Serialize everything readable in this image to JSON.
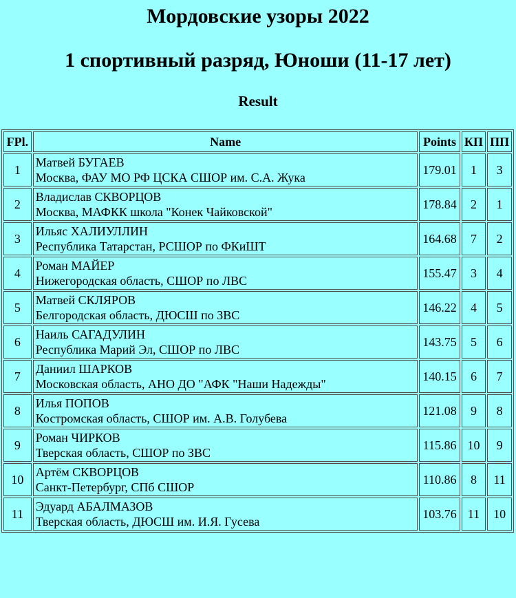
{
  "page": {
    "title": "Мордовские узоры 2022",
    "subtitle": "1 спортивный разряд, Юноши (11-17 лет)",
    "result_label": "Result"
  },
  "colors": {
    "background": "#99FFFF",
    "text": "#000000",
    "table_border": "#4D4D4D"
  },
  "table": {
    "columns": [
      "FPl.",
      "Name",
      "Points",
      "КП",
      "ПП"
    ],
    "rows": [
      {
        "rank": "1",
        "name": "Матвей БУГАЕВ",
        "affiliation": "Москва, ФАУ МО РФ ЦСКА СШОР им. С.А. Жука",
        "points": "179.01",
        "kp": "1",
        "pp": "3"
      },
      {
        "rank": "2",
        "name": "Владислав СКВОРЦОВ",
        "affiliation": "Москва, МАФКК школа \"Конек Чайковской\"",
        "points": "178.84",
        "kp": "2",
        "pp": "1"
      },
      {
        "rank": "3",
        "name": "Ильяс ХАЛИУЛЛИН",
        "affiliation": "Республика Татарстан, РСШОР по ФКиШТ",
        "points": "164.68",
        "kp": "7",
        "pp": "2"
      },
      {
        "rank": "4",
        "name": "Роман МАЙЕР",
        "affiliation": "Нижегородская область, СШОР по ЛВС",
        "points": "155.47",
        "kp": "3",
        "pp": "4"
      },
      {
        "rank": "5",
        "name": "Матвей СКЛЯРОВ",
        "affiliation": "Белгородская область, ДЮСШ по ЗВС",
        "points": "146.22",
        "kp": "4",
        "pp": "5"
      },
      {
        "rank": "6",
        "name": "Наиль САГАДУЛИН",
        "affiliation": "Республика Марий Эл, СШОР по ЛВС",
        "points": "143.75",
        "kp": "5",
        "pp": "6"
      },
      {
        "rank": "7",
        "name": "Даниил ШАРКОВ",
        "affiliation": "Московская область, АНО ДО \"АФК \"Наши Надежды\"",
        "points": "140.15",
        "kp": "6",
        "pp": "7"
      },
      {
        "rank": "8",
        "name": "Илья ПОПОВ",
        "affiliation": "Костромская область, СШОР им. А.В. Голубева",
        "points": "121.08",
        "kp": "9",
        "pp": "8"
      },
      {
        "rank": "9",
        "name": "Роман ЧИРКОВ",
        "affiliation": "Тверская область, СШОР по ЗВС",
        "points": "115.86",
        "kp": "10",
        "pp": "9"
      },
      {
        "rank": "10",
        "name": "Артём СКВОРЦОВ",
        "affiliation": "Санкт-Петербург, СПб СШОР",
        "points": "110.86",
        "kp": "8",
        "pp": "11"
      },
      {
        "rank": "11",
        "name": "Эдуард АБАЛМАЗОВ",
        "affiliation": "Тверская область, ДЮСШ им. И.Я. Гусева",
        "points": "103.76",
        "kp": "11",
        "pp": "10"
      }
    ]
  }
}
